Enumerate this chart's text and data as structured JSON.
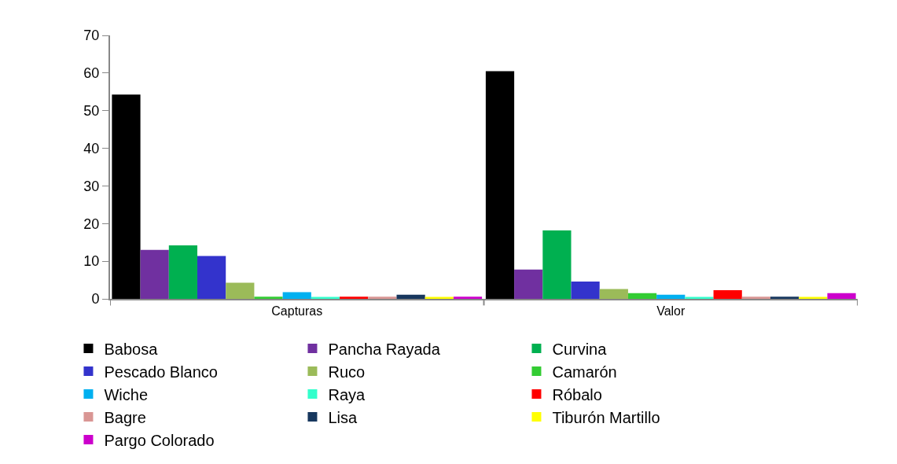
{
  "chart_data": {
    "type": "bar",
    "categories": [
      "Capturas",
      "Valor"
    ],
    "series": [
      {
        "name": "Babosa",
        "color": "#000000",
        "values": [
          54.3,
          60.5
        ]
      },
      {
        "name": "Pancha Rayada",
        "color": "#7030a0",
        "values": [
          13.0,
          7.8
        ]
      },
      {
        "name": "Curvina",
        "color": "#00b050",
        "values": [
          14.2,
          18.2
        ]
      },
      {
        "name": "Pescado Blanco",
        "color": "#3333cc",
        "values": [
          11.4,
          4.6
        ]
      },
      {
        "name": "Ruco",
        "color": "#9bbb59",
        "values": [
          4.3,
          2.6
        ]
      },
      {
        "name": "Camarón",
        "color": "#33cc33",
        "values": [
          0.6,
          1.5
        ]
      },
      {
        "name": "Wiche",
        "color": "#00b0f0",
        "values": [
          1.8,
          1.1
        ]
      },
      {
        "name": "Raya",
        "color": "#33ffcc",
        "values": [
          0.5,
          0.5
        ]
      },
      {
        "name": "Róbalo",
        "color": "#ff0000",
        "values": [
          0.6,
          2.3
        ]
      },
      {
        "name": "Bagre",
        "color": "#d99694",
        "values": [
          0.6,
          0.6
        ]
      },
      {
        "name": "Lisa",
        "color": "#17375e",
        "values": [
          1.1,
          0.6
        ]
      },
      {
        "name": "Tiburón Martillo",
        "color": "#ffff00",
        "values": [
          0.5,
          0.5
        ]
      },
      {
        "name": "Pargo Colorado",
        "color": "#cc00cc",
        "values": [
          0.6,
          1.5
        ]
      }
    ],
    "ylim": [
      0,
      70
    ],
    "yticks": [
      0,
      10,
      20,
      30,
      40,
      50,
      60,
      70
    ],
    "legend": "bottom"
  }
}
